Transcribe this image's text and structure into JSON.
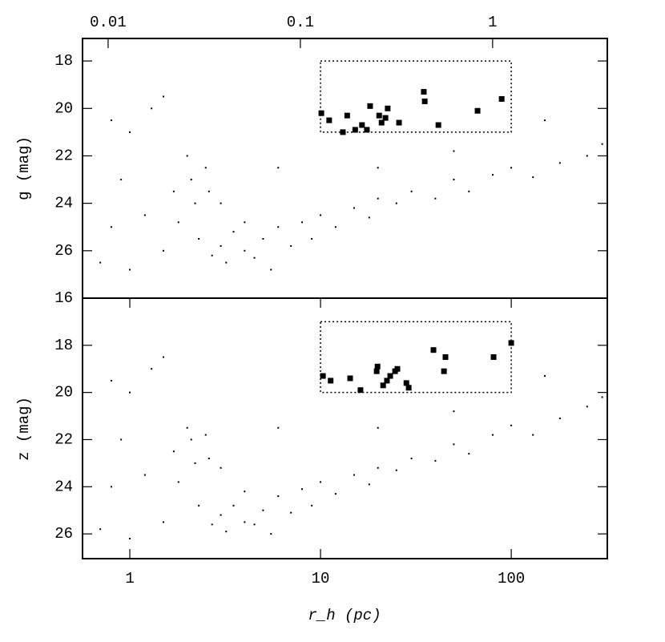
{
  "chart_data": [
    {
      "type": "scatter",
      "ylabel": "g (mag)",
      "log_x": true,
      "xlim": [
        0.565,
        319
      ],
      "ylim": [
        28,
        17.05
      ],
      "yticks": [
        18,
        20,
        22,
        24,
        26
      ],
      "x2lim": [
        0.00736,
        3.95
      ],
      "x2ticks": [
        0.01,
        0.1,
        1
      ],
      "box": {
        "x": [
          10,
          100
        ],
        "y": [
          18,
          21
        ]
      },
      "series": [
        {
          "color": "#000000",
          "marker": "dot",
          "x": [
            0.7,
            0.8,
            0.9,
            1,
            1,
            1.2,
            1.3,
            1.5,
            1.7,
            1.8,
            2,
            2.1,
            2.2,
            2.3,
            2.5,
            2.6,
            2.7,
            3,
            3,
            3.2,
            3.5,
            4,
            4,
            4.5,
            5,
            5.5,
            6,
            7,
            8,
            9,
            10,
            12,
            15,
            18,
            20,
            25,
            30,
            40,
            50,
            60,
            80,
            100,
            130,
            180,
            250,
            300,
            20,
            50,
            150,
            6,
            0.8,
            1.5
          ],
          "values": [
            26.5,
            25,
            23,
            21,
            26.8,
            24.5,
            20,
            26,
            23.5,
            24.8,
            22,
            23,
            24,
            25.5,
            22.5,
            23.5,
            26.2,
            24,
            25.8,
            26.5,
            25.2,
            26,
            24.8,
            26.3,
            25.5,
            26.8,
            25,
            25.8,
            24.8,
            25.5,
            24.5,
            25,
            24.2,
            24.6,
            23.8,
            24,
            23.5,
            23.8,
            23,
            23.5,
            22.8,
            22.5,
            22.9,
            22.3,
            22,
            21.5,
            22.5,
            21.8,
            20.5,
            22.5,
            20.5,
            19.5
          ]
        },
        {
          "color": "#000000",
          "marker": "square",
          "x": [
            10.1,
            11.1,
            13.1,
            13.8,
            15.2,
            16.5,
            17.5,
            18.2,
            20.3,
            20.9,
            21.9,
            22.5,
            25.8,
            34.8,
            35.2,
            41.5,
            66.6,
            89.1
          ],
          "values": [
            20.2,
            20.5,
            21.0,
            20.3,
            20.9,
            20.7,
            20.9,
            19.9,
            20.3,
            20.6,
            20.4,
            20.0,
            20.6,
            19.3,
            19.7,
            20.7,
            20.1,
            19.6
          ]
        }
      ]
    },
    {
      "type": "scatter",
      "ylabel": "z (mag)",
      "xlabel": "r_h (pc)",
      "log_x": true,
      "xlim": [
        0.565,
        319
      ],
      "ylim": [
        27.05,
        16
      ],
      "yticks": [
        16,
        18,
        20,
        22,
        24,
        26
      ],
      "xticks": [
        1,
        10,
        100
      ],
      "box": {
        "x": [
          10,
          100
        ],
        "y": [
          17,
          20
        ]
      },
      "series": [
        {
          "color": "#000000",
          "marker": "dot",
          "x": [
            0.7,
            0.8,
            0.9,
            1,
            1,
            1.2,
            1.3,
            1.5,
            1.7,
            1.8,
            2,
            2.1,
            2.2,
            2.3,
            2.5,
            2.6,
            2.7,
            3,
            3,
            3.2,
            3.5,
            4,
            4,
            4.5,
            5,
            5.5,
            6,
            7,
            8,
            9,
            10,
            12,
            15,
            18,
            20,
            25,
            30,
            40,
            50,
            60,
            80,
            100,
            130,
            180,
            250,
            300,
            20,
            50,
            150,
            6,
            0.8,
            1.5
          ],
          "values": [
            25.8,
            24,
            22,
            20,
            26.2,
            23.5,
            19,
            25.5,
            22.5,
            23.8,
            21.5,
            22,
            23,
            24.8,
            21.8,
            22.8,
            25.6,
            23.2,
            25.2,
            25.9,
            24.8,
            25.5,
            24.2,
            25.6,
            25,
            26,
            24.4,
            25.1,
            24.1,
            24.8,
            23.8,
            24.3,
            23.5,
            23.9,
            23.2,
            23.3,
            22.8,
            22.9,
            22.2,
            22.6,
            21.8,
            21.4,
            21.8,
            21.1,
            20.6,
            20.2,
            21.5,
            20.8,
            19.3,
            21.5,
            19.5,
            18.5
          ]
        },
        {
          "color": "#000000",
          "marker": "square",
          "x": [
            10.3,
            11.3,
            14.3,
            16.2,
            19.7,
            19.9,
            21.3,
            22.3,
            23.2,
            24.6,
            25.3,
            28.2,
            29.0,
            39.1,
            45.2,
            44.4,
            80.8,
            100
          ],
          "values": [
            19.3,
            19.5,
            19.4,
            19.9,
            19.1,
            18.9,
            19.7,
            19.5,
            19.3,
            19.1,
            19.0,
            19.6,
            19.8,
            18.2,
            18.5,
            19.1,
            18.5,
            17.9
          ]
        }
      ]
    }
  ]
}
